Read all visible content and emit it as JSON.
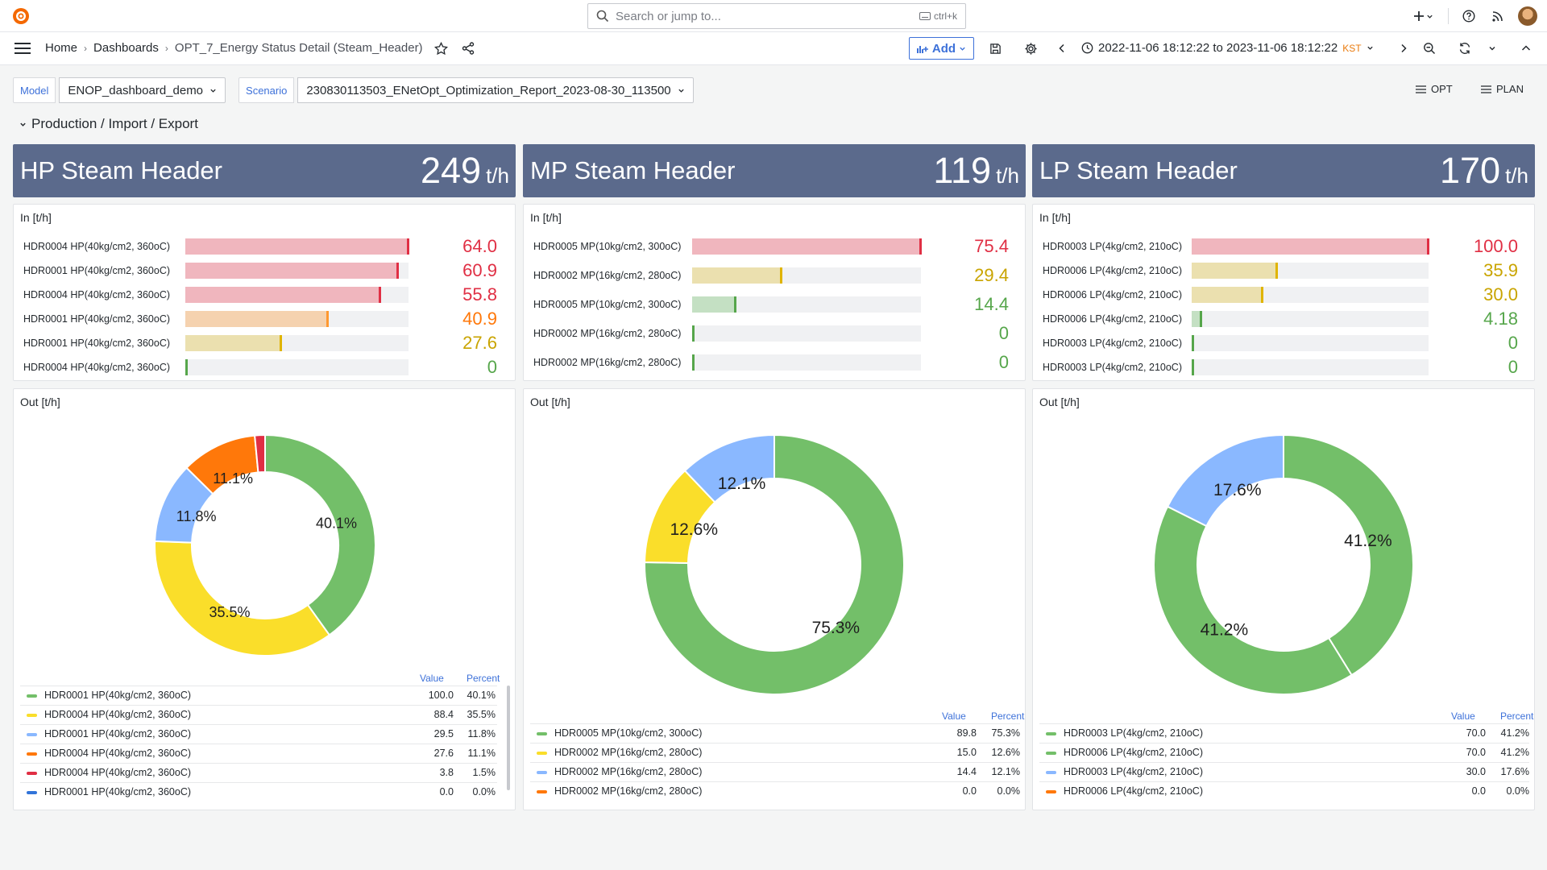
{
  "topbar": {
    "search_placeholder": "Search or jump to...",
    "search_shortcut": "ctrl+k"
  },
  "nav": {
    "breadcrumbs": [
      "Home",
      "Dashboards",
      "OPT_7_Energy Status Detail (Steam_Header)"
    ],
    "add_label": "Add",
    "time_range": "2022-11-06 18:12:22 to 2023-11-06 18:12:22",
    "timezone": "KST"
  },
  "vars": {
    "model_label": "Model",
    "model_value": "ENOP_dashboard_demo",
    "scenario_label": "Scenario",
    "scenario_value": "230830113503_ENetOpt_Optimization_Report_2023-08-30_113500",
    "link_opt": "OPT",
    "link_plan": "PLAN"
  },
  "row_title": "Production / Import / Export",
  "colors": {
    "red": "#e02f44",
    "orange": "#ff780a",
    "yellow": "#fade2a",
    "green": "#73bf69",
    "blue": "#8ab8ff",
    "header": "#5b6a8c"
  },
  "headers": [
    {
      "name": "HP Steam Header",
      "value": "249",
      "unit": "t/h"
    },
    {
      "name": "MP Steam Header",
      "value": "119",
      "unit": "t/h"
    },
    {
      "name": "LP Steam Header",
      "value": "170",
      "unit": "t/h"
    }
  ],
  "in_title": "In [t/h]",
  "out_title": "Out [t/h]",
  "legend_value": "Value",
  "legend_percent": "Percent",
  "in_bars": [
    {
      "max": 64.0,
      "items": [
        {
          "label": "HDR0004 HP(40kg/cm2, 360oC)",
          "value": 64.0,
          "display": "64.0",
          "color": "red"
        },
        {
          "label": "HDR0001 HP(40kg/cm2, 360oC)",
          "value": 60.9,
          "display": "60.9",
          "color": "red"
        },
        {
          "label": "HDR0004 HP(40kg/cm2, 360oC)",
          "value": 55.8,
          "display": "55.8",
          "color": "red"
        },
        {
          "label": "HDR0001 HP(40kg/cm2, 360oC)",
          "value": 40.9,
          "display": "40.9",
          "color": "orange"
        },
        {
          "label": "HDR0001 HP(40kg/cm2, 360oC)",
          "value": 27.6,
          "display": "27.6",
          "color": "yellow"
        },
        {
          "label": "HDR0004 HP(40kg/cm2, 360oC)",
          "value": 0,
          "display": "0",
          "color": "green"
        }
      ]
    },
    {
      "max": 75.4,
      "items": [
        {
          "label": "HDR0005 MP(10kg/cm2, 300oC)",
          "value": 75.4,
          "display": "75.4",
          "color": "red"
        },
        {
          "label": "HDR0002 MP(16kg/cm2, 280oC)",
          "value": 29.4,
          "display": "29.4",
          "color": "yellow"
        },
        {
          "label": "HDR0005 MP(10kg/cm2, 300oC)",
          "value": 14.4,
          "display": "14.4",
          "color": "green"
        },
        {
          "label": "HDR0002 MP(16kg/cm2, 280oC)",
          "value": 0,
          "display": "0",
          "color": "green"
        },
        {
          "label": "HDR0002 MP(16kg/cm2, 280oC)",
          "value": 0,
          "display": "0",
          "color": "green"
        }
      ]
    },
    {
      "max": 100.0,
      "items": [
        {
          "label": "HDR0003 LP(4kg/cm2, 210oC)",
          "value": 100.0,
          "display": "100.0",
          "color": "red"
        },
        {
          "label": "HDR0006 LP(4kg/cm2, 210oC)",
          "value": 35.9,
          "display": "35.9",
          "color": "yellow"
        },
        {
          "label": "HDR0006 LP(4kg/cm2, 210oC)",
          "value": 30.0,
          "display": "30.0",
          "color": "yellow"
        },
        {
          "label": "HDR0006 LP(4kg/cm2, 210oC)",
          "value": 4.18,
          "display": "4.18",
          "color": "green"
        },
        {
          "label": "HDR0003 LP(4kg/cm2, 210oC)",
          "value": 0,
          "display": "0",
          "color": "green"
        },
        {
          "label": "HDR0003 LP(4kg/cm2, 210oC)",
          "value": 0,
          "display": "0",
          "color": "green"
        }
      ]
    }
  ],
  "out_donuts": [
    {
      "slices": [
        {
          "label": "HDR0001 HP(40kg/cm2, 360oC)",
          "value": "100.0",
          "percent": "40.1%",
          "pct": 40.1,
          "color": "#73bf69",
          "show": true
        },
        {
          "label": "HDR0004 HP(40kg/cm2, 360oC)",
          "value": "88.4",
          "percent": "35.5%",
          "pct": 35.5,
          "color": "#fade2a",
          "show": true
        },
        {
          "label": "HDR0001 HP(40kg/cm2, 360oC)",
          "value": "29.5",
          "percent": "11.8%",
          "pct": 11.8,
          "color": "#8ab8ff",
          "show": true
        },
        {
          "label": "HDR0004 HP(40kg/cm2, 360oC)",
          "value": "27.6",
          "percent": "11.1%",
          "pct": 11.1,
          "color": "#ff780a",
          "show": true
        },
        {
          "label": "HDR0004 HP(40kg/cm2, 360oC)",
          "value": "3.8",
          "percent": "1.5%",
          "pct": 1.5,
          "color": "#e02f44",
          "show": false
        },
        {
          "label": "HDR0001 HP(40kg/cm2, 360oC)",
          "value": "0.0",
          "percent": "0.0%",
          "pct": 0,
          "color": "#3274d9",
          "show": false
        }
      ]
    },
    {
      "slices": [
        {
          "label": "HDR0005 MP(10kg/cm2, 300oC)",
          "value": "89.8",
          "percent": "75.3%",
          "pct": 75.3,
          "color": "#73bf69",
          "show": true
        },
        {
          "label": "HDR0002 MP(16kg/cm2, 280oC)",
          "value": "15.0",
          "percent": "12.6%",
          "pct": 12.6,
          "color": "#fade2a",
          "show": true
        },
        {
          "label": "HDR0002 MP(16kg/cm2, 280oC)",
          "value": "14.4",
          "percent": "12.1%",
          "pct": 12.1,
          "color": "#8ab8ff",
          "show": true
        },
        {
          "label": "HDR0002 MP(16kg/cm2, 280oC)",
          "value": "0.0",
          "percent": "0.0%",
          "pct": 0,
          "color": "#ff780a",
          "show": false
        }
      ]
    },
    {
      "slices": [
        {
          "label": "HDR0003 LP(4kg/cm2, 210oC)",
          "value": "70.0",
          "percent": "41.2%",
          "pct": 41.2,
          "color": "#73bf69",
          "show": true
        },
        {
          "label": "HDR0006 LP(4kg/cm2, 210oC)",
          "value": "70.0",
          "percent": "41.2%",
          "pct": 41.2,
          "color": "#73bf69",
          "show": true
        },
        {
          "label": "HDR0003 LP(4kg/cm2, 210oC)",
          "value": "30.0",
          "percent": "17.6%",
          "pct": 17.6,
          "color": "#8ab8ff",
          "show": true
        },
        {
          "label": "HDR0006 LP(4kg/cm2, 210oC)",
          "value": "0.0",
          "percent": "0.0%",
          "pct": 0,
          "color": "#ff780a",
          "show": false
        }
      ]
    }
  ]
}
